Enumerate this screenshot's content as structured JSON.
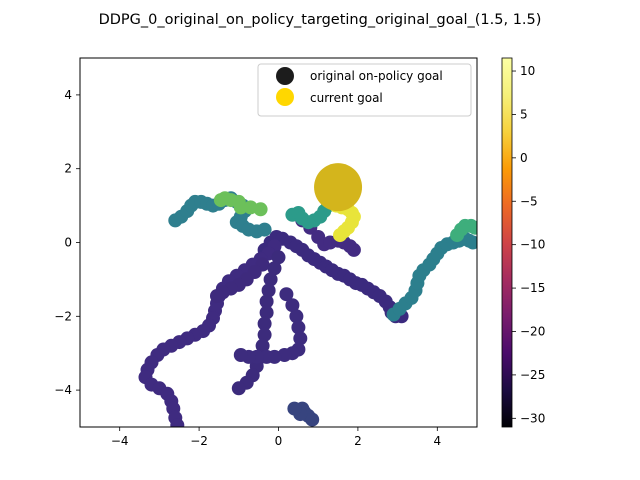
{
  "chart_data": {
    "type": "scatter",
    "title": "DDPG_0_original_on_policy_targeting_original_goal_(1.5, 1.5)",
    "xlabel": "",
    "ylabel": "",
    "xlim": [
      -5,
      5
    ],
    "ylim": [
      -5,
      5
    ],
    "xticks": [
      -4,
      -2,
      0,
      2,
      4
    ],
    "yticks": [
      -4,
      -2,
      0,
      2,
      4
    ],
    "grid": false,
    "legend_position": "top-right",
    "colormap": "inferno",
    "colorbar": {
      "min": -31,
      "max": 11.5,
      "ticks": [
        10,
        5,
        0,
        -5,
        -10,
        -15,
        -20,
        -25,
        -30
      ]
    },
    "legend": [
      {
        "label": "original on-policy goal",
        "color": "#1c1c1c"
      },
      {
        "label": "current goal",
        "color": "#ffd700"
      }
    ],
    "goal_markers": [
      {
        "x": 1.5,
        "y": 1.5,
        "color": "#1c1c1c"
      },
      {
        "x": 1.5,
        "y": 1.5,
        "color": "#d4b51c"
      }
    ],
    "trajectories": [
      {
        "color": "#3b2a7e",
        "points": [
          [
            -0.35,
            -0.2
          ],
          [
            -0.2,
            0
          ],
          [
            -0.05,
            0.15
          ],
          [
            0.1,
            0.1
          ],
          [
            0.3,
            0
          ],
          [
            0.45,
            -0.1
          ],
          [
            0.6,
            -0.2
          ],
          [
            0.75,
            -0.35
          ],
          [
            0.9,
            -0.45
          ],
          [
            1.05,
            -0.55
          ],
          [
            1.2,
            -0.65
          ],
          [
            1.35,
            -0.75
          ],
          [
            1.5,
            -0.85
          ],
          [
            1.65,
            -0.9
          ],
          [
            1.8,
            -1.0
          ],
          [
            1.95,
            -1.1
          ],
          [
            2.1,
            -1.15
          ],
          [
            2.25,
            -1.25
          ],
          [
            2.4,
            -1.35
          ],
          [
            2.55,
            -1.45
          ],
          [
            2.7,
            -1.6
          ],
          [
            2.8,
            -1.75
          ],
          [
            2.85,
            -1.9
          ],
          [
            2.95,
            -2.0
          ],
          [
            3.1,
            -2.0
          ]
        ]
      },
      {
        "color": "#3f2b80",
        "points": [
          [
            -0.1,
            -0.1
          ],
          [
            -0.25,
            -0.3
          ],
          [
            -0.45,
            -0.45
          ],
          [
            -0.65,
            -0.6
          ],
          [
            -0.85,
            -0.75
          ],
          [
            -1.05,
            -0.9
          ],
          [
            -1.25,
            -1.05
          ],
          [
            -1.4,
            -1.25
          ],
          [
            -1.5,
            -1.45
          ],
          [
            -1.55,
            -1.65
          ],
          [
            -1.6,
            -1.85
          ],
          [
            -1.65,
            -2.05
          ],
          [
            -1.75,
            -2.25
          ],
          [
            -1.9,
            -2.4
          ],
          [
            -2.1,
            -2.5
          ],
          [
            -2.3,
            -2.6
          ],
          [
            -2.5,
            -2.7
          ],
          [
            -2.7,
            -2.8
          ],
          [
            -2.9,
            -2.9
          ],
          [
            -3.05,
            -3.05
          ],
          [
            -3.2,
            -3.25
          ],
          [
            -3.3,
            -3.45
          ],
          [
            -3.35,
            -3.65
          ],
          [
            -3.2,
            -3.85
          ],
          [
            -3.0,
            -3.95
          ],
          [
            -2.8,
            -4.1
          ],
          [
            -2.7,
            -4.3
          ],
          [
            -2.65,
            -4.5
          ],
          [
            -2.6,
            -4.75
          ],
          [
            -2.55,
            -4.95
          ]
        ]
      },
      {
        "color": "#3e2a7d",
        "points": [
          [
            -0.4,
            -0.6
          ],
          [
            -0.6,
            -0.8
          ],
          [
            -0.8,
            -1.0
          ],
          [
            -1.0,
            -1.15
          ],
          [
            -1.2,
            -1.25
          ],
          [
            -1.4,
            -1.35
          ],
          [
            -1.55,
            -1.45
          ]
        ]
      },
      {
        "color": "#3c2b7c",
        "points": [
          [
            0.0,
            -0.4
          ],
          [
            -0.1,
            -0.7
          ],
          [
            -0.2,
            -1.0
          ],
          [
            -0.25,
            -1.3
          ],
          [
            -0.3,
            -1.6
          ],
          [
            -0.3,
            -1.9
          ],
          [
            -0.35,
            -2.2
          ],
          [
            -0.35,
            -2.5
          ],
          [
            -0.4,
            -2.8
          ],
          [
            -0.45,
            -3.1
          ],
          [
            -0.55,
            -3.35
          ],
          [
            -0.65,
            -3.6
          ],
          [
            -0.8,
            -3.8
          ],
          [
            -1.0,
            -3.95
          ]
        ]
      },
      {
        "color": "#3d2c7e",
        "points": [
          [
            0.2,
            -1.4
          ],
          [
            0.35,
            -1.7
          ],
          [
            0.45,
            -2.0
          ],
          [
            0.5,
            -2.3
          ],
          [
            0.55,
            -2.6
          ],
          [
            0.5,
            -2.9
          ],
          [
            0.35,
            -3.0
          ],
          [
            0.15,
            -3.05
          ],
          [
            -0.1,
            -3.1
          ],
          [
            -0.3,
            -3.1
          ],
          [
            -0.55,
            -3.1
          ],
          [
            -0.75,
            -3.1
          ],
          [
            -0.95,
            -3.05
          ]
        ]
      },
      {
        "color": "#432b82",
        "points": [
          [
            0.6,
            0.6
          ],
          [
            0.8,
            0.4
          ],
          [
            1.0,
            0.15
          ],
          [
            1.15,
            -0.05
          ],
          [
            1.3,
            0.0
          ],
          [
            1.5,
            0.05
          ],
          [
            1.65,
            0.0
          ],
          [
            1.8,
            -0.1
          ],
          [
            1.9,
            -0.2
          ]
        ]
      },
      {
        "color": "#37447f",
        "points": [
          [
            0.5,
            -4.55
          ],
          [
            0.6,
            -4.5
          ],
          [
            0.65,
            -4.6
          ],
          [
            0.75,
            -4.7
          ],
          [
            0.85,
            -4.8
          ],
          [
            0.55,
            -4.65
          ],
          [
            0.4,
            -4.5
          ]
        ]
      },
      {
        "color": "#2f7f8e",
        "points": [
          [
            -2.6,
            0.6
          ],
          [
            -2.45,
            0.7
          ],
          [
            -2.3,
            0.85
          ],
          [
            -2.2,
            1.0
          ],
          [
            -2.1,
            1.1
          ],
          [
            -1.95,
            1.1
          ],
          [
            -1.8,
            1.05
          ],
          [
            -1.65,
            1.0
          ],
          [
            -1.5,
            1.05
          ],
          [
            -1.35,
            1.15
          ],
          [
            -1.2,
            1.2
          ],
          [
            -1.05,
            1.1
          ],
          [
            -0.9,
            1.0
          ],
          [
            -0.85,
            0.85
          ],
          [
            -0.95,
            0.7
          ],
          [
            -1.05,
            0.55
          ],
          [
            -0.9,
            0.45
          ],
          [
            -0.75,
            0.35
          ],
          [
            -0.55,
            0.3
          ],
          [
            -0.35,
            0.35
          ]
        ]
      },
      {
        "color": "#6cc05a",
        "points": [
          [
            -1.45,
            1.15
          ],
          [
            -1.35,
            1.2
          ],
          [
            -1.2,
            1.15
          ],
          [
            -1.0,
            1.1
          ],
          [
            -0.95,
            0.95
          ],
          [
            -0.7,
            0.95
          ],
          [
            -0.45,
            0.9
          ]
        ]
      },
      {
        "color": "#2c9b8a",
        "points": [
          [
            0.35,
            0.75
          ],
          [
            0.5,
            0.8
          ],
          [
            0.6,
            0.65
          ],
          [
            0.75,
            0.55
          ],
          [
            0.9,
            0.6
          ],
          [
            1.05,
            0.7
          ],
          [
            1.15,
            0.85
          ],
          [
            1.25,
            1.0
          ]
        ]
      },
      {
        "color": "#e8e43a",
        "points": [
          [
            1.3,
            1.1
          ],
          [
            1.45,
            1.0
          ],
          [
            1.6,
            0.95
          ],
          [
            1.75,
            0.9
          ],
          [
            1.85,
            0.8
          ],
          [
            1.9,
            0.7
          ],
          [
            1.85,
            0.55
          ],
          [
            1.75,
            0.4
          ],
          [
            1.65,
            0.3
          ],
          [
            1.55,
            0.2
          ]
        ]
      },
      {
        "color": "#2c7f8d",
        "points": [
          [
            2.9,
            -1.95
          ],
          [
            3.05,
            -1.8
          ],
          [
            3.2,
            -1.65
          ],
          [
            3.35,
            -1.5
          ],
          [
            3.45,
            -1.3
          ],
          [
            3.5,
            -1.1
          ],
          [
            3.55,
            -0.9
          ],
          [
            3.65,
            -0.75
          ],
          [
            3.8,
            -0.6
          ],
          [
            3.9,
            -0.45
          ],
          [
            4.0,
            -0.3
          ],
          [
            4.1,
            -0.15
          ],
          [
            4.25,
            -0.05
          ],
          [
            4.4,
            0.0
          ],
          [
            4.55,
            0.05
          ],
          [
            4.7,
            0.1
          ],
          [
            4.8,
            0.05
          ],
          [
            4.9,
            0.0
          ]
        ]
      },
      {
        "color": "#3eae7c",
        "points": [
          [
            4.5,
            0.2
          ],
          [
            4.6,
            0.35
          ],
          [
            4.7,
            0.45
          ],
          [
            4.85,
            0.45
          ],
          [
            4.95,
            0.4
          ]
        ]
      }
    ]
  }
}
